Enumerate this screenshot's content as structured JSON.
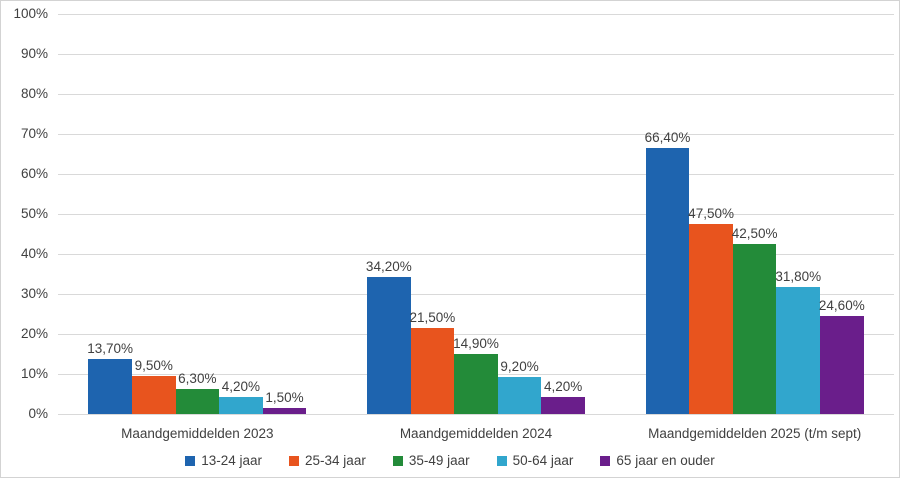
{
  "chart_data": {
    "type": "bar",
    "title": "",
    "xlabel": "",
    "ylabel": "",
    "ylim": [
      0,
      100
    ],
    "grid": true,
    "legend_position": "bottom",
    "y_ticks": [
      "0%",
      "10%",
      "20%",
      "30%",
      "40%",
      "50%",
      "60%",
      "70%",
      "80%",
      "90%",
      "100%"
    ],
    "categories": [
      "Maandgemiddelden 2023",
      "Maandgemiddelden 2024",
      "Maandgemiddelden 2025 (t/m sept)"
    ],
    "series": [
      {
        "name": "13-24 jaar",
        "color": "#1e64af",
        "values": [
          13.7,
          34.2,
          66.4
        ],
        "labels": [
          "13,70%",
          "34,20%",
          "66,40%"
        ]
      },
      {
        "name": "25-34 jaar",
        "color": "#e8541e",
        "values": [
          9.5,
          21.5,
          47.5
        ],
        "labels": [
          "9,50%",
          "21,50%",
          "47,50%"
        ]
      },
      {
        "name": "35-49 jaar",
        "color": "#238b39",
        "values": [
          6.3,
          14.9,
          42.5
        ],
        "labels": [
          "6,30%",
          "14,90%",
          "42,50%"
        ]
      },
      {
        "name": "50-64 jaar",
        "color": "#31a6cd",
        "values": [
          4.2,
          9.2,
          31.8
        ],
        "labels": [
          "4,20%",
          "9,20%",
          "31,80%"
        ]
      },
      {
        "name": "65 jaar en ouder",
        "color": "#6a1e8b",
        "values": [
          1.5,
          4.2,
          24.6
        ],
        "labels": [
          "1,50%",
          "4,20%",
          "24,60%"
        ]
      }
    ]
  },
  "colors": {
    "gridline": "#d9d9d9",
    "border": "#d3d3d3",
    "text": "#404040",
    "background": "#ffffff"
  }
}
